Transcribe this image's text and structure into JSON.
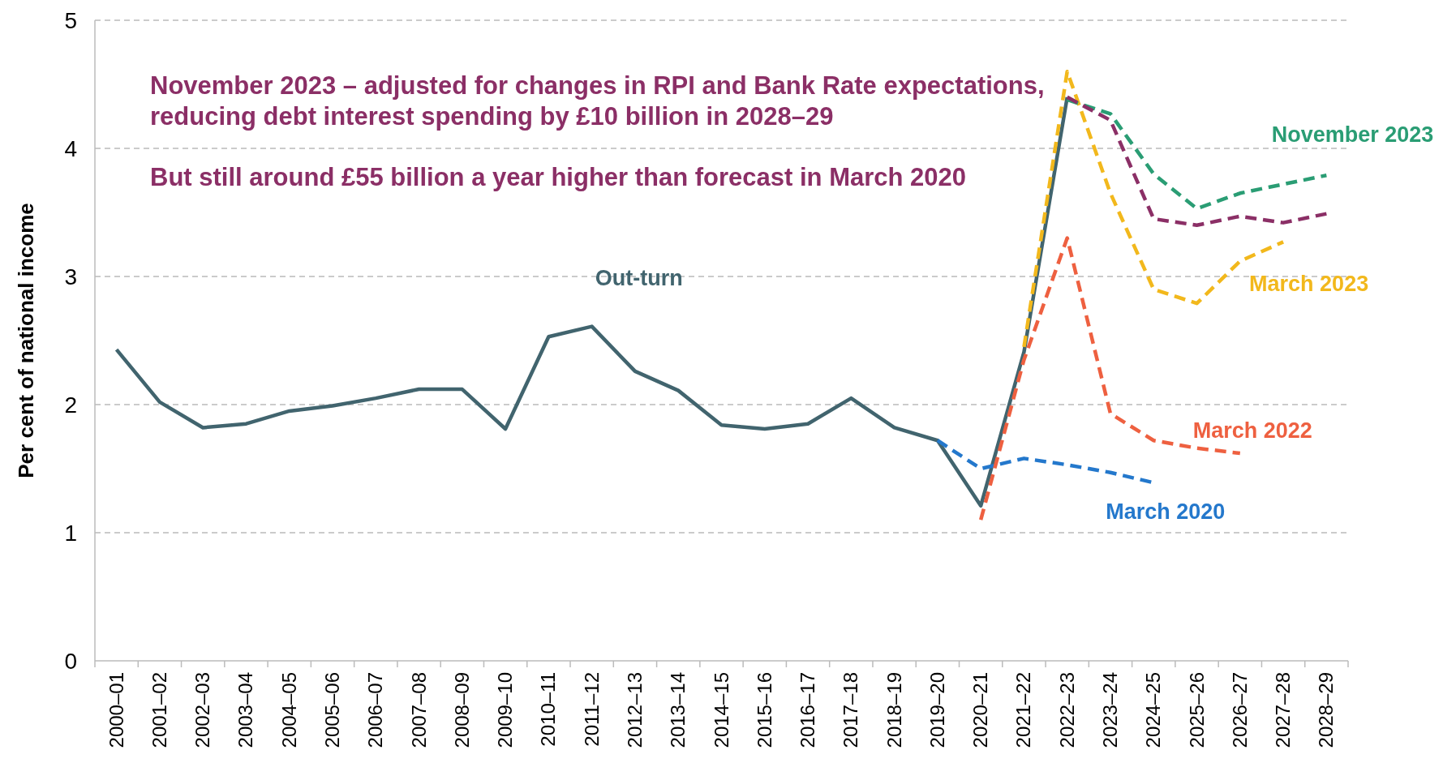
{
  "chart_data": {
    "type": "line",
    "ylabel": "Per cent of national income",
    "categories": [
      "2000–01",
      "2001–02",
      "2002–03",
      "2003–04",
      "2004–05",
      "2005–06",
      "2006–07",
      "2007–08",
      "2008–09",
      "2009–10",
      "2010–11",
      "2011–12",
      "2012–13",
      "2013–14",
      "2014–15",
      "2015–16",
      "2016–17",
      "2017–18",
      "2018–19",
      "2019–20",
      "2020–21",
      "2021–22",
      "2022–23",
      "2023–24",
      "2024–25",
      "2025–26",
      "2026–27",
      "2027–28",
      "2028–29"
    ],
    "ylim": [
      0,
      5
    ],
    "yticks": [
      0,
      1,
      2,
      3,
      4,
      5
    ],
    "grid": "y",
    "annotations": [
      "November 2023 – adjusted for changes in RPI and Bank Rate expectations, reducing debt interest spending by £10 billion in 2028–29",
      "But still around £55 billion a year higher than forecast in March 2020"
    ],
    "series": [
      {
        "name": "Out-turn",
        "color": "#41646e",
        "line_style": "solid",
        "values": [
          2.43,
          2.02,
          1.82,
          1.85,
          1.95,
          1.99,
          2.05,
          2.12,
          2.12,
          1.81,
          2.53,
          2.61,
          2.26,
          2.11,
          1.84,
          1.81,
          1.85,
          2.05,
          1.82,
          1.72,
          1.21,
          2.41,
          4.4,
          null,
          null,
          null,
          null,
          null,
          null
        ]
      },
      {
        "name": "March 2020",
        "color": "#2478cc",
        "line_style": "dashed",
        "values": [
          null,
          null,
          null,
          null,
          null,
          null,
          null,
          null,
          null,
          null,
          null,
          null,
          null,
          null,
          null,
          null,
          null,
          null,
          null,
          1.72,
          1.5,
          1.58,
          1.53,
          1.47,
          1.39,
          null,
          null,
          null,
          null
        ]
      },
      {
        "name": "March 2022",
        "color": "#ee6040",
        "line_style": "dashed",
        "values": [
          null,
          null,
          null,
          null,
          null,
          null,
          null,
          null,
          null,
          null,
          null,
          null,
          null,
          null,
          null,
          null,
          null,
          null,
          null,
          null,
          1.1,
          2.35,
          3.3,
          1.93,
          1.72,
          1.66,
          1.62,
          null,
          null
        ]
      },
      {
        "name": "March 2023",
        "color": "#f2b81c",
        "line_style": "dashed",
        "values": [
          null,
          null,
          null,
          null,
          null,
          null,
          null,
          null,
          null,
          null,
          null,
          null,
          null,
          null,
          null,
          null,
          null,
          null,
          null,
          null,
          null,
          2.45,
          4.6,
          3.65,
          2.9,
          2.79,
          3.12,
          3.27,
          null
        ]
      },
      {
        "name": "November 2023",
        "color": "#2a9d74",
        "line_style": "dashed",
        "values": [
          null,
          null,
          null,
          null,
          null,
          null,
          null,
          null,
          null,
          null,
          null,
          null,
          null,
          null,
          null,
          null,
          null,
          null,
          null,
          null,
          null,
          null,
          4.38,
          4.27,
          3.8,
          3.53,
          3.65,
          3.72,
          3.79
        ]
      },
      {
        "color": "#8b2f66",
        "line_style": "dashed",
        "values": [
          null,
          null,
          null,
          null,
          null,
          null,
          null,
          null,
          null,
          null,
          null,
          null,
          null,
          null,
          null,
          null,
          null,
          null,
          null,
          null,
          null,
          null,
          4.4,
          4.22,
          3.45,
          3.4,
          3.47,
          3.42,
          3.49
        ]
      }
    ]
  }
}
